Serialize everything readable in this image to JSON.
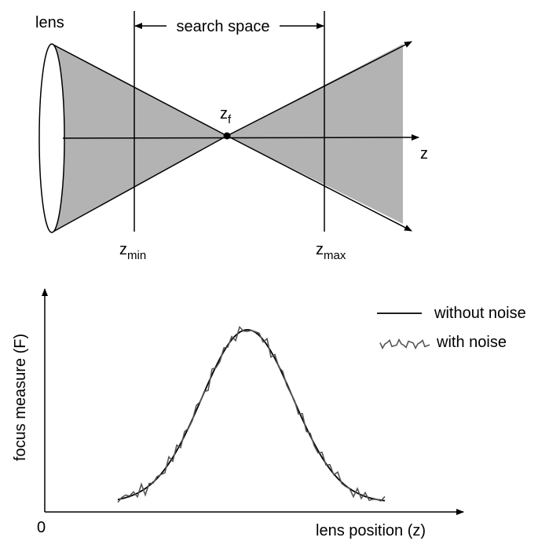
{
  "optics": {
    "lens_label": "lens",
    "search_space_label": "search space",
    "focus_point": {
      "main": "z",
      "sub": "f"
    },
    "axis_label": "z",
    "zmin": {
      "main": "z",
      "sub": "min"
    },
    "zmax": {
      "main": "z",
      "sub": "max"
    },
    "cone_fill_color": "#b3b3b3"
  },
  "plot": {
    "ylabel": "focus measure (F)",
    "xlabel": "lens position (z)",
    "origin_label": "0",
    "legend": {
      "clean_label": "without noise",
      "noisy_label": "with noise"
    },
    "clean_color": "#000000",
    "noisy_color": "#555555"
  }
}
